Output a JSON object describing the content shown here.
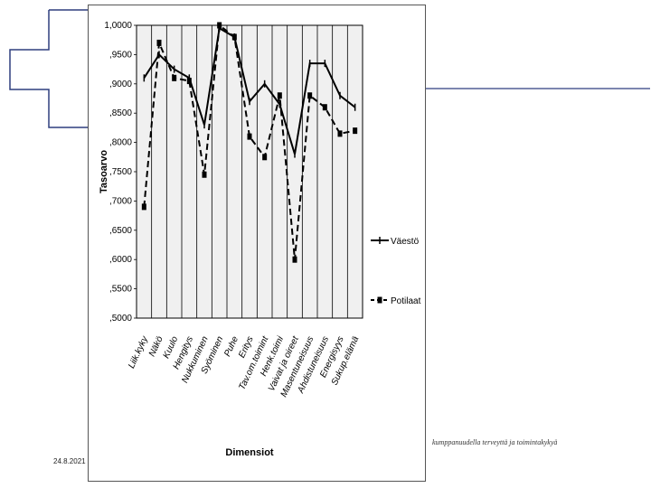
{
  "slide": {
    "date": "24.8.2021",
    "footer_text": "kumppanuudella terveyttä ja toimintakykyä"
  },
  "chart_data": {
    "type": "line",
    "title": "",
    "xlabel": "Dimensiot",
    "ylabel": "Tasoarvo",
    "ylim": [
      0.5,
      1.0
    ],
    "yticks": [
      ",5000",
      ",5500",
      ",6000",
      ",6500",
      ",7000",
      ",7500",
      ",8000",
      ",8500",
      ",9000",
      ",9500",
      "1,0000"
    ],
    "grid": "vertical",
    "background": "#f0f0f0",
    "legend_position": "right",
    "categories": [
      "Liik.kyky",
      "Näkö",
      "Kuulo",
      "Hengitys",
      "Nukkuminen",
      "Syöminen",
      "Puhe",
      "Eritys",
      "Tav.om.toimint",
      "Henk.toimi",
      "Vaivat ja oireet",
      "Masentuneisuus",
      "Ahdistuneisuus",
      "Energisyys",
      "Sukup.elämä"
    ],
    "series": [
      {
        "name": "Väestö",
        "style": "solid",
        "color": "#000000",
        "values": [
          0.91,
          0.95,
          0.925,
          0.91,
          0.83,
          0.995,
          0.98,
          0.87,
          0.9,
          0.865,
          0.78,
          0.935,
          0.935,
          0.88,
          0.86
        ]
      },
      {
        "name": "Potilaat",
        "style": "dashed",
        "color": "#000000",
        "values": [
          0.69,
          0.97,
          0.91,
          0.905,
          0.745,
          1.0,
          0.98,
          0.81,
          0.775,
          0.88,
          0.6,
          0.88,
          0.86,
          0.815,
          0.82
        ]
      }
    ]
  }
}
